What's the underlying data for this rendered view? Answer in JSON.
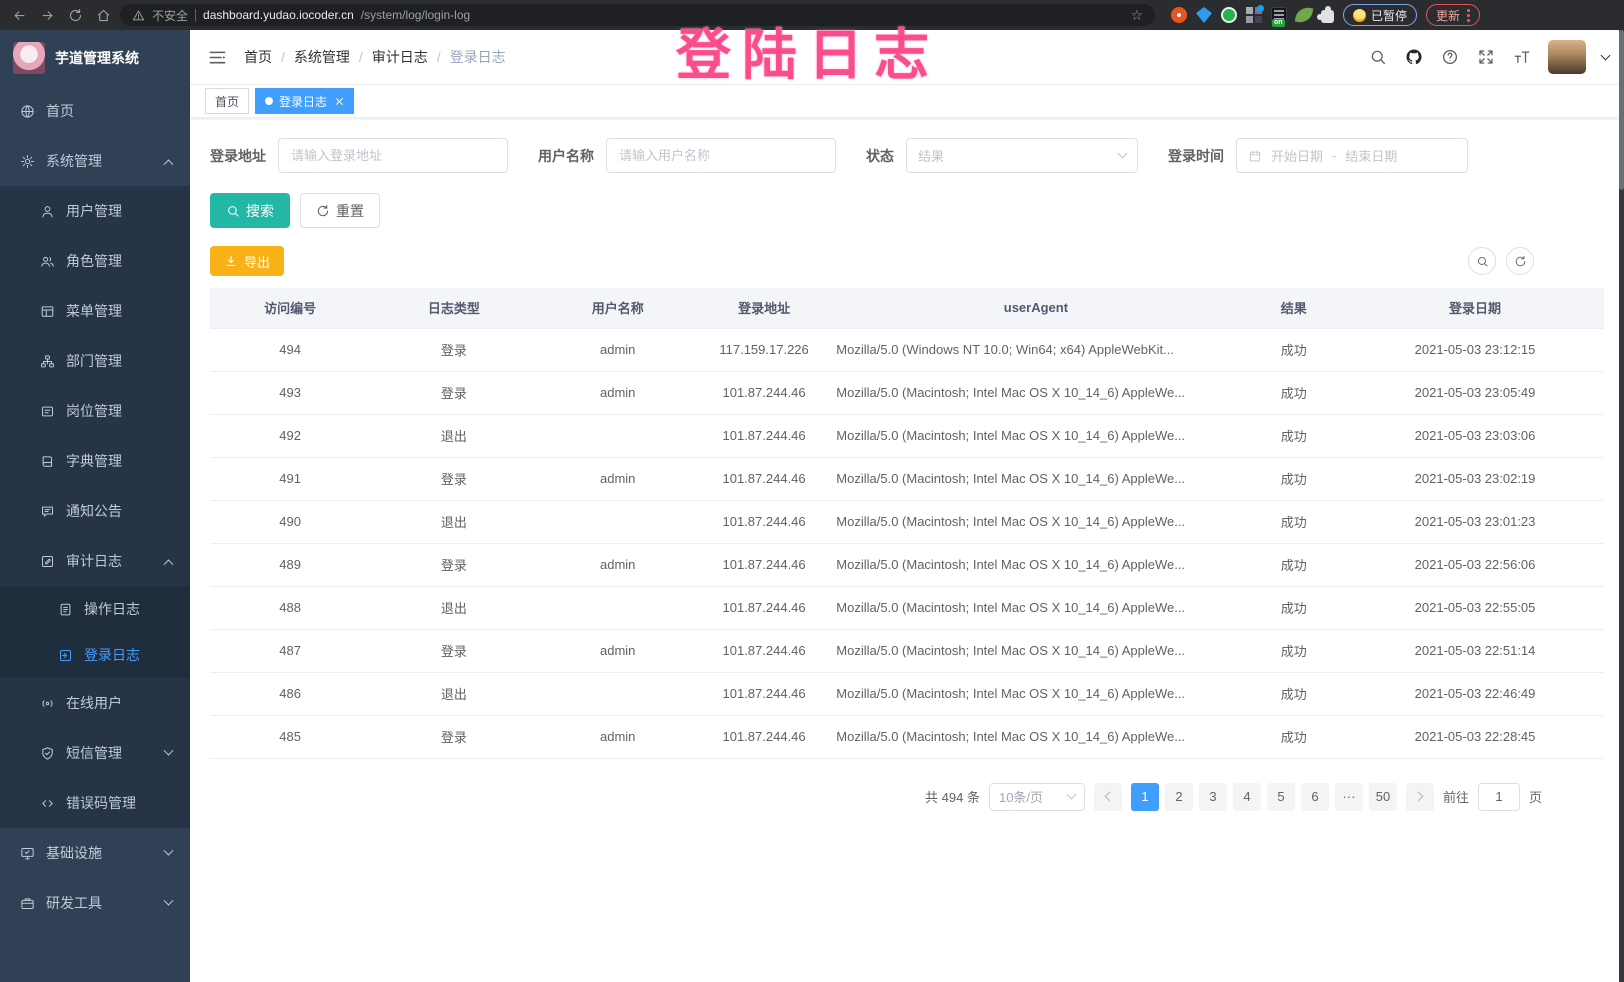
{
  "browser": {
    "security_label": "不安全",
    "url_host": "dashboard.yudao.iocoder.cn",
    "url_path": "/system/log/login-log",
    "on_badge": "on",
    "paused_label": "已暂停",
    "update_label": "更新"
  },
  "annotation_text": "登陆日志",
  "sidebar": {
    "title": "芋道管理系统",
    "items": [
      {
        "label": "首页",
        "level": 1,
        "icon": "dashboard-icon"
      },
      {
        "label": "系统管理",
        "level": 1,
        "icon": "gear-icon",
        "arrow": "up"
      },
      {
        "label": "用户管理",
        "level": 2,
        "icon": "user-icon"
      },
      {
        "label": "角色管理",
        "level": 2,
        "icon": "roles-icon"
      },
      {
        "label": "菜单管理",
        "level": 2,
        "icon": "menu-icon"
      },
      {
        "label": "部门管理",
        "level": 2,
        "icon": "dept-icon"
      },
      {
        "label": "岗位管理",
        "level": 2,
        "icon": "post-icon"
      },
      {
        "label": "字典管理",
        "level": 2,
        "icon": "dict-icon"
      },
      {
        "label": "通知公告",
        "level": 2,
        "icon": "notice-icon"
      },
      {
        "label": "审计日志",
        "level": 2,
        "icon": "audit-icon",
        "arrow": "up"
      },
      {
        "label": "操作日志",
        "level": 3,
        "icon": "operate-log-icon"
      },
      {
        "label": "登录日志",
        "level": 3,
        "icon": "login-log-icon",
        "active": true
      },
      {
        "label": "在线用户",
        "level": 2,
        "icon": "online-users-icon"
      },
      {
        "label": "短信管理",
        "level": 2,
        "icon": "sms-icon",
        "arrow": "down"
      },
      {
        "label": "错误码管理",
        "level": 2,
        "icon": "error-code-icon"
      },
      {
        "label": "基础设施",
        "level": 1,
        "icon": "infra-icon",
        "arrow": "down"
      },
      {
        "label": "研发工具",
        "level": 1,
        "icon": "devtools-icon",
        "arrow": "down"
      }
    ]
  },
  "header": {
    "breadcrumb": [
      "首页",
      "系统管理",
      "审计日志",
      "登录日志"
    ]
  },
  "tags": [
    {
      "label": "首页",
      "active": false
    },
    {
      "label": "登录日志",
      "active": true
    }
  ],
  "filters": {
    "address_label": "登录地址",
    "address_placeholder": "请输入登录地址",
    "username_label": "用户名称",
    "username_placeholder": "请输入用户名称",
    "status_label": "状态",
    "status_placeholder": "结果",
    "time_label": "登录时间",
    "start_placeholder": "开始日期",
    "range_separator": "-",
    "end_placeholder": "结束日期",
    "search_label": "搜索",
    "reset_label": "重置"
  },
  "toolbar": {
    "export_label": "导出"
  },
  "table": {
    "headers": [
      "访问编号",
      "日志类型",
      "用户名称",
      "登录地址",
      "userAgent",
      "结果",
      "登录日期"
    ],
    "rows": [
      {
        "id": "494",
        "type": "登录",
        "user": "admin",
        "ip": "117.159.17.226",
        "ua": "Mozilla/5.0 (Windows NT 10.0; Win64; x64) AppleWebKit...",
        "result": "成功",
        "date": "2021-05-03 23:12:15"
      },
      {
        "id": "493",
        "type": "登录",
        "user": "admin",
        "ip": "101.87.244.46",
        "ua": "Mozilla/5.0 (Macintosh; Intel Mac OS X 10_14_6) AppleWe...",
        "result": "成功",
        "date": "2021-05-03 23:05:49"
      },
      {
        "id": "492",
        "type": "退出",
        "user": "",
        "ip": "101.87.244.46",
        "ua": "Mozilla/5.0 (Macintosh; Intel Mac OS X 10_14_6) AppleWe...",
        "result": "成功",
        "date": "2021-05-03 23:03:06"
      },
      {
        "id": "491",
        "type": "登录",
        "user": "admin",
        "ip": "101.87.244.46",
        "ua": "Mozilla/5.0 (Macintosh; Intel Mac OS X 10_14_6) AppleWe...",
        "result": "成功",
        "date": "2021-05-03 23:02:19"
      },
      {
        "id": "490",
        "type": "退出",
        "user": "",
        "ip": "101.87.244.46",
        "ua": "Mozilla/5.0 (Macintosh; Intel Mac OS X 10_14_6) AppleWe...",
        "result": "成功",
        "date": "2021-05-03 23:01:23"
      },
      {
        "id": "489",
        "type": "登录",
        "user": "admin",
        "ip": "101.87.244.46",
        "ua": "Mozilla/5.0 (Macintosh; Intel Mac OS X 10_14_6) AppleWe...",
        "result": "成功",
        "date": "2021-05-03 22:56:06"
      },
      {
        "id": "488",
        "type": "退出",
        "user": "",
        "ip": "101.87.244.46",
        "ua": "Mozilla/5.0 (Macintosh; Intel Mac OS X 10_14_6) AppleWe...",
        "result": "成功",
        "date": "2021-05-03 22:55:05"
      },
      {
        "id": "487",
        "type": "登录",
        "user": "admin",
        "ip": "101.87.244.46",
        "ua": "Mozilla/5.0 (Macintosh; Intel Mac OS X 10_14_6) AppleWe...",
        "result": "成功",
        "date": "2021-05-03 22:51:14"
      },
      {
        "id": "486",
        "type": "退出",
        "user": "",
        "ip": "101.87.244.46",
        "ua": "Mozilla/5.0 (Macintosh; Intel Mac OS X 10_14_6) AppleWe...",
        "result": "成功",
        "date": "2021-05-03 22:46:49"
      },
      {
        "id": "485",
        "type": "登录",
        "user": "admin",
        "ip": "101.87.244.46",
        "ua": "Mozilla/5.0 (Macintosh; Intel Mac OS X 10_14_6) AppleWe...",
        "result": "成功",
        "date": "2021-05-03 22:28:45"
      }
    ]
  },
  "pagination": {
    "total_label": "共 494 条",
    "page_size_label": "10条/页",
    "pages": [
      "1",
      "2",
      "3",
      "4",
      "5",
      "6",
      "···",
      "50"
    ],
    "active_page": "1",
    "goto_label": "前往",
    "goto_value": "1",
    "goto_unit": "页"
  },
  "colors": {
    "accent": "#409eff",
    "search_button": "#23b8a6",
    "export_button": "#f8b117",
    "sidebar_bg": "#304156",
    "annotation": "#fb4d8e"
  }
}
